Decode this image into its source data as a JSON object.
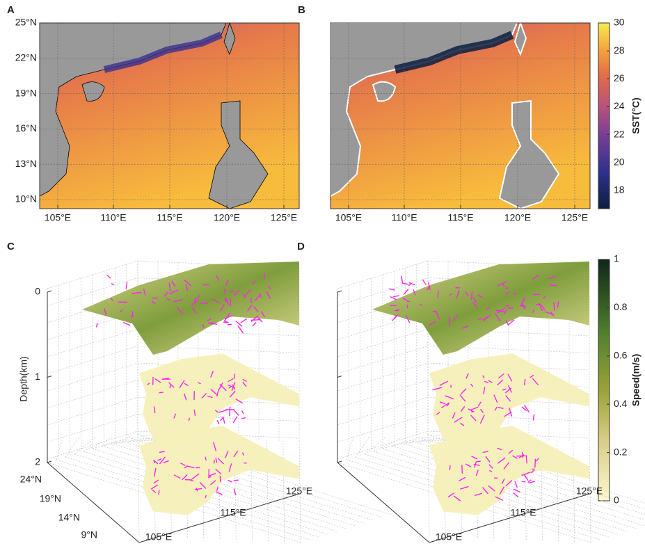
{
  "panels": [
    {
      "label": "A",
      "xticks": [
        "105°E",
        "110°E",
        "115°E",
        "120°E",
        "125°E"
      ],
      "yticks": [
        "25°N",
        "22°N",
        "19°N",
        "16°N",
        "13°N",
        "10°N"
      ]
    },
    {
      "label": "B",
      "xticks": [
        "105°E",
        "110°E",
        "115°E",
        "120°E",
        "125°E"
      ]
    },
    {
      "label": "C",
      "zlabel": "Depth(km)",
      "zlim": [
        0,
        2
      ],
      "zticks": [
        0,
        1,
        2
      ],
      "yticks": [
        "24°N",
        "19°N",
        "14°N",
        "9°N"
      ],
      "xticks": [
        "105°E",
        "115°E",
        "125°E"
      ]
    },
    {
      "label": "D",
      "xticks": [
        "105°E",
        "115°E",
        "125°E"
      ]
    }
  ],
  "colorbars": [
    {
      "label": "SST(°C)",
      "lim": [
        16.7,
        30
      ],
      "ticks": [
        18,
        20,
        22,
        24,
        26,
        28,
        30
      ]
    },
    {
      "label": "Speed(m/s)",
      "lim": [
        0,
        1
      ],
      "ticks": [
        0,
        0.2,
        0.4,
        0.6,
        0.8,
        1
      ]
    }
  ]
}
